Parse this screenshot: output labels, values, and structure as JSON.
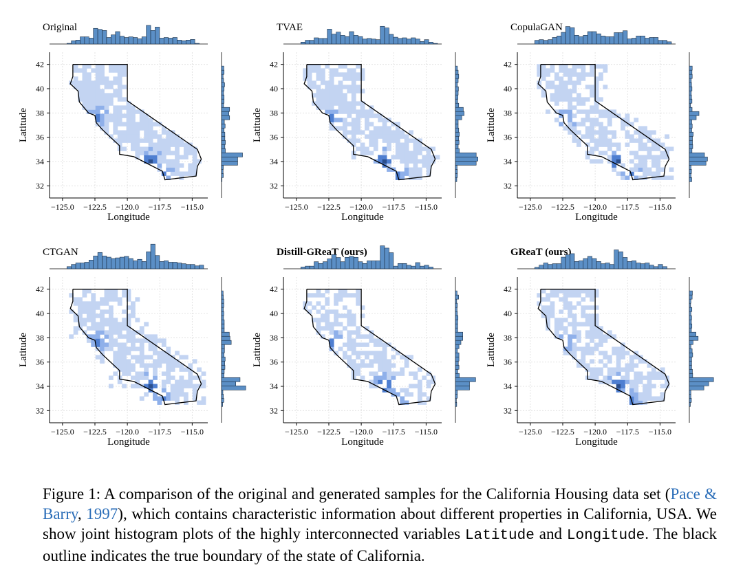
{
  "chart_data": {
    "type": "heatmap",
    "subplot_titles": [
      "Original",
      "TVAE",
      "CopulaGAN",
      "CTGAN",
      "Distill-GReaT (ours)",
      "GReaT (ours)"
    ],
    "bold_titles": [
      false,
      false,
      false,
      false,
      true,
      true
    ],
    "xlabel": "Longitude",
    "ylabel": "Latitude",
    "xticks": [
      -125.0,
      -122.5,
      -120.0,
      -117.5,
      -115.0
    ],
    "xtick_labels": [
      "−125.0",
      "−122.5",
      "−120.0",
      "−117.5",
      "−115.0"
    ],
    "yticks": [
      32,
      34,
      36,
      38,
      40,
      42
    ],
    "ytick_labels": [
      "32",
      "34",
      "36",
      "38",
      "40",
      "42"
    ],
    "xlim": [
      -126.0,
      -113.8
    ],
    "ylim": [
      31.0,
      43.0
    ],
    "grid": true,
    "marginal_histograms": true,
    "colors": {
      "cell_light": "#c3d4f2",
      "cell_mid": "#8fb0ea",
      "cell_dark": "#4f7fd1",
      "cell_darkest": "#2c4f8d",
      "hist_fill": "#5b8fc6",
      "hist_edge": "#1b2e44",
      "outline": "#000000"
    },
    "boundary_outline": [
      [
        -124.2,
        42.0
      ],
      [
        -120.0,
        42.0
      ],
      [
        -120.0,
        39.0
      ],
      [
        -114.6,
        35.0
      ],
      [
        -114.3,
        34.2
      ],
      [
        -114.6,
        33.6
      ],
      [
        -114.7,
        32.8
      ],
      [
        -117.1,
        32.5
      ],
      [
        -117.3,
        33.2
      ],
      [
        -118.4,
        33.8
      ],
      [
        -119.5,
        34.4
      ],
      [
        -120.6,
        34.6
      ],
      [
        -120.6,
        35.3
      ],
      [
        -121.9,
        36.6
      ],
      [
        -122.4,
        37.2
      ],
      [
        -122.5,
        37.8
      ],
      [
        -123.0,
        38.0
      ],
      [
        -123.7,
        38.9
      ],
      [
        -123.8,
        39.8
      ],
      [
        -124.4,
        40.4
      ],
      [
        -124.2,
        41.0
      ],
      [
        -124.2,
        42.0
      ]
    ],
    "hotspots": [
      {
        "lon": -122.3,
        "lat": 37.7,
        "level": 3
      },
      {
        "lon": -118.3,
        "lat": 34.1,
        "level": 4
      },
      {
        "lon": -117.2,
        "lat": 32.8,
        "level": 2
      }
    ]
  },
  "caption": {
    "label": "Figure 1:",
    "text_1": " A comparison of the original and generated samples for the California Housing data set (",
    "cite_author": "Pace & Barry",
    "cite_sep": ", ",
    "cite_year": "1997",
    "text_2": "), which contains characteristic information about different properties in California, USA. We show joint histogram plots of the highly interconnected variables ",
    "var_1": "Latitude",
    "text_3": " and ",
    "var_2": "Longitude",
    "text_4": ". The black outline indicates the true boundary of the state of California."
  }
}
